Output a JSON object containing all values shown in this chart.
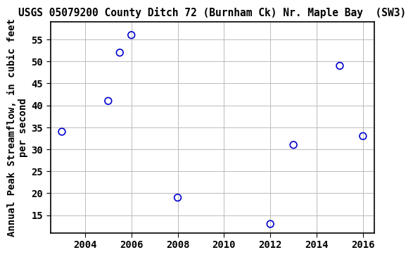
{
  "title": "USGS 05079200 County Ditch 72 (Burnham Ck) Nr. Maple Bay  (SW3)",
  "ylabel": "Annual Peak Streamflow, in cubic feet\nper second",
  "x_values": [
    2003,
    2005,
    2005.5,
    2006,
    2008,
    2012,
    2013,
    2015,
    2016
  ],
  "y_values": [
    34,
    41,
    52,
    56,
    19,
    13,
    31,
    49,
    33
  ],
  "xlim": [
    2002.5,
    2016.5
  ],
  "ylim": [
    11,
    59
  ],
  "xticks": [
    2004,
    2006,
    2008,
    2010,
    2012,
    2014,
    2016
  ],
  "yticks": [
    15,
    20,
    25,
    30,
    35,
    40,
    45,
    50,
    55
  ],
  "marker_color": "#0000cc",
  "marker_facecolor": "none",
  "marker_size": 7,
  "grid_color": "#bbbbbb",
  "bg_color": "#ffffff",
  "title_fontsize": 10.5,
  "label_fontsize": 10,
  "tick_fontsize": 10
}
